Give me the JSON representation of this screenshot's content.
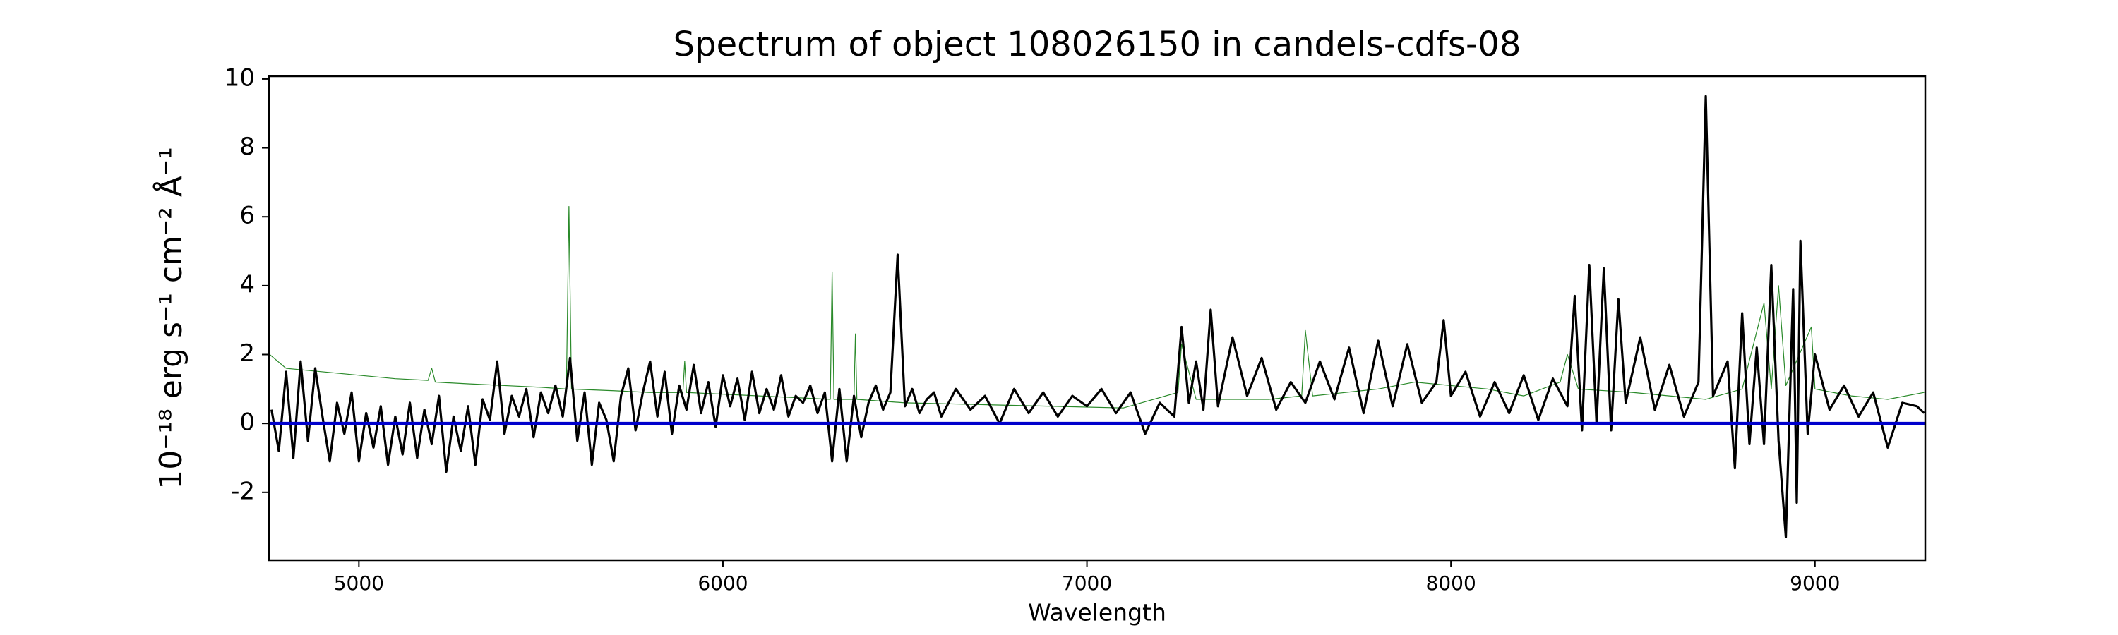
{
  "chart_data": {
    "type": "line",
    "title": "Spectrum of object 108026150 in candels-cdfs-08",
    "x_label": "Wavelength",
    "y_label": "10⁻¹⁸ erg s⁻¹ cm⁻² Å⁻¹",
    "xlim": [
      4753,
      9303
    ],
    "ylim": [
      -3.97,
      10.08
    ],
    "xticks": [
      5000,
      6000,
      7000,
      8000,
      9000
    ],
    "yticks": [
      -2,
      0,
      2,
      4,
      6,
      8,
      10
    ],
    "series": [
      {
        "color": "#2a8a2a",
        "width": 1.2,
        "x": [
          4755,
          4800,
          4900,
          5000,
          5100,
          5190,
          5200,
          5210,
          5300,
          5400,
          5500,
          5570,
          5577,
          5584,
          5700,
          5800,
          5890,
          5895,
          5900,
          6000,
          6100,
          6200,
          6295,
          6300,
          6305,
          6360,
          6364,
          6368,
          6500,
          6700,
          6900,
          7100,
          7250,
          7260,
          7300,
          7500,
          7590,
          7600,
          7620,
          7800,
          7900,
          8000,
          8100,
          8200,
          8300,
          8320,
          8350,
          8500,
          8600,
          8700,
          8800,
          8860,
          8880,
          8900,
          8920,
          8990,
          9000,
          9100,
          9200,
          9300
        ],
        "values": [
          2.0,
          1.6,
          1.5,
          1.4,
          1.3,
          1.25,
          1.6,
          1.2,
          1.15,
          1.1,
          1.05,
          1.0,
          6.3,
          1.0,
          0.95,
          0.9,
          0.9,
          1.8,
          0.9,
          0.85,
          0.8,
          0.75,
          0.7,
          4.4,
          0.7,
          0.7,
          2.6,
          0.7,
          0.6,
          0.55,
          0.5,
          0.45,
          0.9,
          2.3,
          0.7,
          0.7,
          0.8,
          2.7,
          0.8,
          1.0,
          1.2,
          1.1,
          1.0,
          0.8,
          1.2,
          2.0,
          1.0,
          0.9,
          0.8,
          0.7,
          1.0,
          3.5,
          1.0,
          4.0,
          1.1,
          2.8,
          1.0,
          0.8,
          0.7,
          0.9
        ]
      },
      {
        "color": "#000000",
        "width": 3.2,
        "x": [
          4760,
          4780,
          4800,
          4820,
          4840,
          4860,
          4880,
          4900,
          4920,
          4940,
          4960,
          4980,
          5000,
          5020,
          5040,
          5060,
          5080,
          5100,
          5120,
          5140,
          5160,
          5180,
          5200,
          5220,
          5240,
          5260,
          5280,
          5300,
          5320,
          5340,
          5360,
          5380,
          5400,
          5420,
          5440,
          5460,
          5480,
          5500,
          5520,
          5540,
          5560,
          5580,
          5600,
          5620,
          5640,
          5660,
          5680,
          5700,
          5720,
          5740,
          5760,
          5780,
          5800,
          5820,
          5840,
          5860,
          5880,
          5900,
          5920,
          5940,
          5960,
          5980,
          6000,
          6020,
          6040,
          6060,
          6080,
          6100,
          6120,
          6140,
          6160,
          6180,
          6200,
          6220,
          6240,
          6260,
          6280,
          6300,
          6320,
          6340,
          6360,
          6380,
          6400,
          6420,
          6440,
          6460,
          6480,
          6500,
          6520,
          6540,
          6560,
          6580,
          6600,
          6640,
          6680,
          6720,
          6760,
          6800,
          6840,
          6880,
          6920,
          6960,
          7000,
          7040,
          7080,
          7120,
          7160,
          7200,
          7240,
          7260,
          7280,
          7300,
          7320,
          7340,
          7360,
          7400,
          7440,
          7480,
          7520,
          7560,
          7600,
          7640,
          7680,
          7720,
          7760,
          7800,
          7840,
          7880,
          7920,
          7960,
          7980,
          8000,
          8040,
          8080,
          8120,
          8160,
          8200,
          8240,
          8280,
          8320,
          8340,
          8360,
          8380,
          8400,
          8420,
          8440,
          8460,
          8480,
          8520,
          8560,
          8600,
          8640,
          8680,
          8700,
          8720,
          8760,
          8780,
          8800,
          8820,
          8840,
          8860,
          8880,
          8900,
          8920,
          8940,
          8950,
          8960,
          8980,
          9000,
          9040,
          9080,
          9120,
          9160,
          9200,
          9240,
          9280,
          9300
        ],
        "values": [
          0.4,
          -0.8,
          1.5,
          -1.0,
          1.8,
          -0.5,
          1.6,
          0.2,
          -1.1,
          0.6,
          -0.3,
          0.9,
          -1.1,
          0.3,
          -0.7,
          0.5,
          -1.2,
          0.2,
          -0.9,
          0.6,
          -1.0,
          0.4,
          -0.6,
          0.8,
          -1.4,
          0.2,
          -0.8,
          0.5,
          -1.2,
          0.7,
          0.1,
          1.8,
          -0.3,
          0.8,
          0.2,
          1.0,
          -0.4,
          0.9,
          0.3,
          1.1,
          0.2,
          1.9,
          -0.5,
          0.9,
          -1.2,
          0.6,
          0.1,
          -1.1,
          0.8,
          1.6,
          -0.2,
          0.9,
          1.8,
          0.2,
          1.5,
          -0.3,
          1.1,
          0.4,
          1.7,
          0.3,
          1.2,
          -0.1,
          1.4,
          0.5,
          1.3,
          0.1,
          1.5,
          0.3,
          1.0,
          0.4,
          1.4,
          0.2,
          0.8,
          0.6,
          1.1,
          0.3,
          0.9,
          -1.1,
          1.0,
          -1.1,
          0.8,
          -0.4,
          0.6,
          1.1,
          0.4,
          0.9,
          4.9,
          0.5,
          1.0,
          0.3,
          0.7,
          0.9,
          0.2,
          1.0,
          0.4,
          0.8,
          0.0,
          1.0,
          0.3,
          0.9,
          0.2,
          0.8,
          0.5,
          1.0,
          0.3,
          0.9,
          -0.3,
          0.6,
          0.2,
          2.8,
          0.6,
          1.8,
          0.4,
          3.3,
          0.5,
          2.5,
          0.8,
          1.9,
          0.4,
          1.2,
          0.6,
          1.8,
          0.7,
          2.2,
          0.3,
          2.4,
          0.5,
          2.3,
          0.6,
          1.2,
          3.0,
          0.8,
          1.5,
          0.2,
          1.2,
          0.3,
          1.4,
          0.1,
          1.3,
          0.5,
          3.7,
          -0.2,
          4.6,
          0.0,
          4.5,
          -0.2,
          3.6,
          0.6,
          2.5,
          0.4,
          1.7,
          0.2,
          1.2,
          9.5,
          0.8,
          1.8,
          -1.3,
          3.2,
          -0.6,
          2.2,
          -0.6,
          4.6,
          -0.5,
          -3.3,
          3.9,
          -2.3,
          5.3,
          -0.3,
          2.0,
          0.4,
          1.1,
          0.2,
          0.9,
          -0.7,
          0.6,
          0.5,
          0.3
        ]
      },
      {
        "color": "#0000cc",
        "width": 4.5,
        "x": [
          4753,
          9303
        ],
        "values": [
          0,
          0
        ]
      }
    ]
  }
}
